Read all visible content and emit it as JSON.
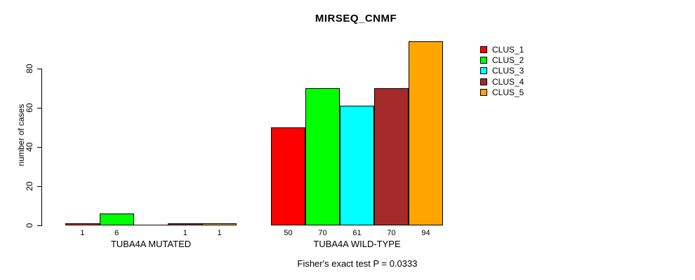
{
  "chart_data": {
    "type": "bar",
    "title": "MIRSEQ_CNMF",
    "ylabel": "number of cases",
    "xlabel": "",
    "yticks": [
      0,
      20,
      40,
      60,
      80
    ],
    "ylim": [
      0,
      95
    ],
    "grid": false,
    "legend_position": "top-right-outside",
    "background": "#ffffff",
    "axis_color": "#000000",
    "groups": [
      {
        "label": "TUBA4A MUTATED"
      },
      {
        "label": "TUBA4A WILD-TYPE"
      }
    ],
    "series": [
      {
        "name": "CLUS_1",
        "color": "#ff0000",
        "values": [
          1,
          50
        ]
      },
      {
        "name": "CLUS_2",
        "color": "#00ff00",
        "values": [
          6,
          70
        ]
      },
      {
        "name": "CLUS_3",
        "color": "#00ffff",
        "values": [
          0,
          61
        ]
      },
      {
        "name": "CLUS_4",
        "color": "#a52a2a",
        "values": [
          1,
          70
        ]
      },
      {
        "name": "CLUS_5",
        "color": "#ffa500",
        "values": [
          1,
          94
        ]
      }
    ],
    "value_labels": [
      [
        "1",
        "6",
        "",
        "1",
        "1"
      ],
      [
        "50",
        "70",
        "61",
        "70",
        "94"
      ]
    ],
    "annotation": "Fisher's exact test P = 0.0333"
  }
}
